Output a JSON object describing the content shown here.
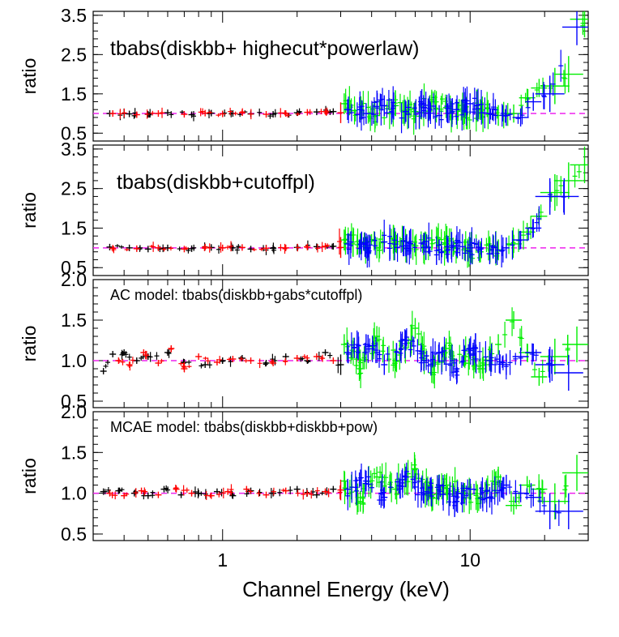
{
  "figure": {
    "xlabel": "Channel Energy (keV)"
  },
  "colors": {
    "black": "#000000",
    "red": "#ff0000",
    "green": "#00ee00",
    "blue": "#0000ff",
    "reference": "#ee22ee"
  },
  "chart_data": [
    {
      "type": "scatter",
      "annotation": "tbabs(diskbb+ highecut*powerlaw)",
      "ylabel": "ratio",
      "xlim": [
        0.3,
        30
      ],
      "xscale": "log",
      "ylim": [
        0.3,
        3.6
      ],
      "yticks": [
        "0.5",
        "1.5",
        "2.5",
        "3.5"
      ],
      "xticks": [],
      "reference_line": 1.0,
      "series": [
        {
          "color": "black",
          "x": [
            0.35,
            0.42,
            0.5,
            0.6,
            0.75,
            0.9,
            1.1,
            1.3,
            1.6,
            2.0,
            2.4,
            2.8
          ],
          "y": [
            1.0,
            0.99,
            0.98,
            1.02,
            0.97,
            1.01,
            1.0,
            0.99,
            0.98,
            1.02,
            1.04,
            1.05
          ]
        },
        {
          "color": "red",
          "x": [
            0.36,
            0.45,
            0.55,
            0.7,
            0.85,
            1.0,
            1.2,
            1.5,
            1.8,
            2.2,
            2.6,
            3.0
          ],
          "y": [
            1.0,
            0.97,
            1.0,
            0.98,
            1.01,
            0.99,
            1.02,
            0.98,
            1.0,
            1.03,
            1.05,
            1.02
          ]
        },
        {
          "color": "green",
          "x": [
            3.1,
            3.6,
            4.2,
            5.0,
            6.0,
            7.0,
            8.0,
            9.5,
            11,
            13,
            15,
            17,
            19,
            22,
            25,
            29
          ],
          "y": [
            1.25,
            1.1,
            0.95,
            1.2,
            1.05,
            1.3,
            1.15,
            1.0,
            1.1,
            0.95,
            1.0,
            1.4,
            1.65,
            1.7,
            2.0,
            3.4
          ]
        },
        {
          "color": "blue",
          "x": [
            3.2,
            3.8,
            4.5,
            5.5,
            6.5,
            7.5,
            8.8,
            10,
            12,
            14,
            16,
            18,
            21,
            27
          ],
          "y": [
            1.1,
            1.0,
            1.2,
            1.05,
            1.15,
            0.95,
            1.1,
            1.25,
            1.0,
            0.95,
            0.9,
            1.3,
            1.5,
            3.2
          ]
        }
      ]
    },
    {
      "type": "scatter",
      "annotation": "tbabs(diskbb+cutoffpl)",
      "ylabel": "ratio",
      "xlim": [
        0.3,
        30
      ],
      "xscale": "log",
      "ylim": [
        0.3,
        3.6
      ],
      "yticks": [
        "0.5",
        "1.5",
        "2.5",
        "3.5"
      ],
      "xticks": [],
      "reference_line": 1.0,
      "series": [
        {
          "color": "black",
          "x": [
            0.35,
            0.42,
            0.5,
            0.6,
            0.75,
            0.9,
            1.1,
            1.3,
            1.6,
            2.0,
            2.4,
            2.8
          ],
          "y": [
            1.02,
            1.0,
            0.97,
            1.0,
            0.98,
            1.01,
            1.0,
            0.97,
            0.99,
            1.01,
            1.03,
            1.04
          ]
        },
        {
          "color": "red",
          "x": [
            0.36,
            0.45,
            0.55,
            0.7,
            0.85,
            1.0,
            1.2,
            1.5,
            1.8,
            2.2,
            2.6,
            3.0
          ],
          "y": [
            0.99,
            0.98,
            1.0,
            0.97,
            1.02,
            1.0,
            1.01,
            0.99,
            1.0,
            1.02,
            1.04,
            1.01
          ]
        },
        {
          "color": "green",
          "x": [
            3.1,
            3.6,
            4.2,
            5.0,
            6.0,
            7.0,
            8.0,
            9.5,
            11,
            13,
            15,
            17,
            19,
            22,
            25,
            29
          ],
          "y": [
            1.2,
            1.1,
            1.0,
            1.15,
            1.05,
            1.2,
            1.1,
            0.95,
            0.9,
            0.95,
            1.1,
            1.4,
            1.8,
            2.4,
            2.7,
            3.1
          ]
        },
        {
          "color": "blue",
          "x": [
            3.2,
            3.8,
            4.5,
            5.5,
            6.5,
            7.5,
            8.8,
            10,
            12,
            14,
            16,
            18,
            21,
            24
          ],
          "y": [
            1.1,
            1.0,
            1.15,
            1.05,
            1.1,
            0.95,
            1.05,
            1.0,
            0.85,
            1.0,
            1.2,
            1.5,
            2.3,
            2.3
          ]
        }
      ]
    },
    {
      "type": "scatter",
      "annotation": "AC model: tbabs(diskbb+gabs*cutoffpl)",
      "ylabel": "ratio",
      "xlim": [
        0.3,
        30
      ],
      "xscale": "log",
      "ylim": [
        0.42,
        2.0
      ],
      "yticks": [
        "0.5",
        "1.0",
        "1.5",
        "2.0"
      ],
      "xticks": [],
      "reference_line": 1.0,
      "series": [
        {
          "color": "black",
          "x": [
            0.33,
            0.36,
            0.4,
            0.45,
            0.5,
            0.6,
            0.7,
            0.85,
            1.0,
            1.2,
            1.5,
            1.8,
            2.2,
            2.6,
            3.0
          ],
          "y": [
            0.87,
            1.08,
            1.1,
            1.0,
            1.05,
            1.1,
            0.98,
            0.95,
            1.0,
            1.03,
            0.97,
            1.05,
            1.0,
            1.1,
            0.95
          ]
        },
        {
          "color": "red",
          "x": [
            0.38,
            0.42,
            0.48,
            0.55,
            0.62,
            0.7,
            0.8,
            0.95,
            1.1,
            1.3,
            1.6,
            2.0,
            2.4,
            2.8
          ],
          "y": [
            1.0,
            0.95,
            1.1,
            0.97,
            1.15,
            0.9,
            1.05,
            0.98,
            1.02,
            1.0,
            0.97,
            1.03,
            1.05,
            1.0
          ]
        },
        {
          "color": "green",
          "x": [
            3.1,
            3.6,
            4.2,
            5.0,
            6.0,
            7.0,
            8.0,
            9.5,
            11,
            13,
            15,
            17,
            19,
            22,
            27
          ],
          "y": [
            1.2,
            0.9,
            1.3,
            1.0,
            1.4,
            0.85,
            1.15,
            1.05,
            0.9,
            1.2,
            1.5,
            1.1,
            0.8,
            1.05,
            1.2
          ]
        },
        {
          "color": "blue",
          "x": [
            3.2,
            3.8,
            4.5,
            5.5,
            6.5,
            7.5,
            8.8,
            10,
            12,
            14,
            16,
            18,
            21,
            25
          ],
          "y": [
            1.1,
            1.2,
            0.95,
            1.25,
            1.0,
            1.1,
            0.9,
            1.15,
            1.0,
            0.95,
            1.05,
            1.1,
            0.95,
            0.85
          ]
        }
      ]
    },
    {
      "type": "scatter",
      "annotation": "MCAE model: tbabs(diskbb+diskbb+pow)",
      "ylabel": "ratio",
      "xlim": [
        0.3,
        30
      ],
      "xscale": "log",
      "ylim": [
        0.42,
        2.0
      ],
      "yticks": [
        "0.5",
        "1.0",
        "1.5",
        "2.0"
      ],
      "xticks": [
        "1",
        "10"
      ],
      "xtick_values": [
        1,
        10
      ],
      "reference_line": 1.0,
      "series": [
        {
          "color": "black",
          "x": [
            0.33,
            0.38,
            0.44,
            0.5,
            0.58,
            0.68,
            0.8,
            0.95,
            1.1,
            1.3,
            1.6,
            2.0,
            2.4,
            2.8
          ],
          "y": [
            1.02,
            1.03,
            1.0,
            0.97,
            1.05,
            0.98,
            1.0,
            1.02,
            0.97,
            1.03,
            1.0,
            1.05,
            0.98,
            1.05
          ]
        },
        {
          "color": "red",
          "x": [
            0.35,
            0.4,
            0.47,
            0.55,
            0.65,
            0.75,
            0.9,
            1.05,
            1.25,
            1.5,
            1.8,
            2.2,
            2.6,
            3.0
          ],
          "y": [
            1.0,
            0.97,
            1.03,
            0.98,
            1.05,
            1.0,
            0.97,
            1.02,
            1.05,
            0.98,
            1.03,
            1.0,
            1.02,
            1.04
          ]
        },
        {
          "color": "green",
          "x": [
            3.1,
            3.6,
            4.2,
            5.0,
            6.0,
            7.0,
            8.0,
            9.5,
            11,
            13,
            15,
            17,
            19,
            22,
            27
          ],
          "y": [
            1.15,
            0.9,
            1.2,
            1.05,
            1.3,
            0.95,
            1.1,
            1.0,
            0.95,
            1.2,
            0.85,
            1.1,
            1.05,
            0.9,
            1.25
          ]
        },
        {
          "color": "blue",
          "x": [
            3.2,
            3.8,
            4.5,
            5.5,
            6.5,
            7.5,
            8.8,
            10,
            12,
            14,
            16,
            18,
            21,
            25
          ],
          "y": [
            1.05,
            1.15,
            0.95,
            1.2,
            1.0,
            1.1,
            0.9,
            1.05,
            0.95,
            1.1,
            1.0,
            0.95,
            0.78,
            0.78
          ]
        }
      ]
    }
  ]
}
